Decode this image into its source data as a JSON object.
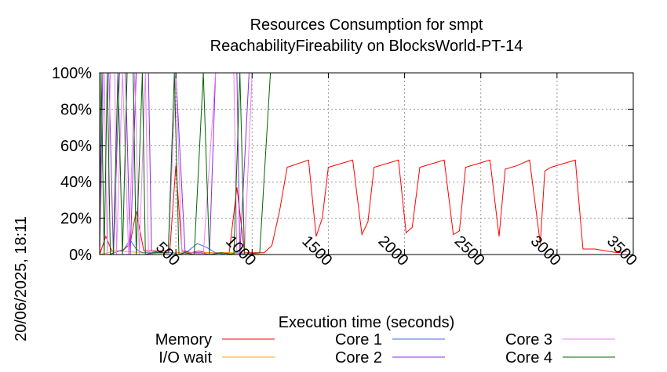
{
  "chart_data": {
    "type": "line",
    "title": "Resources Consumption for smpt",
    "subtitle": "ReachabilityFireability on BlocksWorld-PT-14",
    "xlabel": "Execution time (seconds)",
    "ylabel": "",
    "side_label": "20/06/2025, 18:11",
    "xlim": [
      0,
      3500
    ],
    "ylim": [
      0,
      100
    ],
    "x_ticks": [
      500,
      1000,
      1500,
      2000,
      2500,
      3000,
      3500
    ],
    "y_ticks": [
      0,
      20,
      40,
      60,
      80,
      100
    ],
    "y_tick_suffix": "%",
    "grid": true,
    "legend_position": "bottom",
    "series": [
      {
        "name": "Memory",
        "color": "#ff0000",
        "points": [
          [
            0,
            0
          ],
          [
            40,
            10
          ],
          [
            80,
            2
          ],
          [
            150,
            2
          ],
          [
            200,
            6
          ],
          [
            240,
            24
          ],
          [
            290,
            2
          ],
          [
            340,
            2
          ],
          [
            390,
            2
          ],
          [
            460,
            2
          ],
          [
            500,
            49
          ],
          [
            540,
            2
          ],
          [
            600,
            1
          ],
          [
            650,
            2
          ],
          [
            700,
            1
          ],
          [
            800,
            1
          ],
          [
            850,
            1
          ],
          [
            900,
            37
          ],
          [
            950,
            1
          ],
          [
            1000,
            1
          ],
          [
            1080,
            1
          ],
          [
            1130,
            5
          ],
          [
            1180,
            24
          ],
          [
            1230,
            48
          ],
          [
            1300,
            50
          ],
          [
            1370,
            52
          ],
          [
            1420,
            10
          ],
          [
            1460,
            20
          ],
          [
            1500,
            48
          ],
          [
            1580,
            50
          ],
          [
            1660,
            52
          ],
          [
            1720,
            11
          ],
          [
            1760,
            18
          ],
          [
            1800,
            48
          ],
          [
            1880,
            50
          ],
          [
            1960,
            52
          ],
          [
            2010,
            12
          ],
          [
            2050,
            15
          ],
          [
            2100,
            48
          ],
          [
            2180,
            50
          ],
          [
            2260,
            52
          ],
          [
            2320,
            11
          ],
          [
            2360,
            13
          ],
          [
            2400,
            48
          ],
          [
            2480,
            50
          ],
          [
            2560,
            52
          ],
          [
            2620,
            10
          ],
          [
            2660,
            47
          ],
          [
            2740,
            49
          ],
          [
            2820,
            52
          ],
          [
            2890,
            6
          ],
          [
            2920,
            46
          ],
          [
            2960,
            48
          ],
          [
            3040,
            50
          ],
          [
            3120,
            52
          ],
          [
            3170,
            3
          ],
          [
            3250,
            3
          ],
          [
            3320,
            2
          ],
          [
            3400,
            1
          ],
          [
            3460,
            2
          ]
        ]
      },
      {
        "name": "I/O wait",
        "color": "#ffa500",
        "points": [
          [
            0,
            0
          ],
          [
            100,
            2
          ],
          [
            300,
            1
          ],
          [
            500,
            1
          ],
          [
            700,
            1
          ],
          [
            900,
            1
          ],
          [
            1100,
            0
          ]
        ]
      },
      {
        "name": "Core 1",
        "color": "#4169e1",
        "points": [
          [
            0,
            0
          ],
          [
            60,
            0
          ],
          [
            100,
            1
          ],
          [
            160,
            3
          ],
          [
            200,
            8
          ],
          [
            240,
            3
          ],
          [
            280,
            1
          ],
          [
            350,
            1
          ],
          [
            420,
            1
          ],
          [
            480,
            1
          ],
          [
            520,
            0
          ],
          [
            580,
            2
          ],
          [
            640,
            6
          ],
          [
            700,
            4
          ],
          [
            760,
            1
          ],
          [
            830,
            0
          ],
          [
            900,
            1
          ],
          [
            960,
            0
          ],
          [
            1100,
            0
          ]
        ]
      },
      {
        "name": "Core 2",
        "color": "#8a2be2",
        "points": [
          [
            0,
            0
          ],
          [
            20,
            100
          ],
          [
            60,
            100
          ],
          [
            90,
            0
          ],
          [
            130,
            100
          ],
          [
            170,
            100
          ],
          [
            200,
            0
          ],
          [
            240,
            100
          ],
          [
            320,
            100
          ],
          [
            340,
            2
          ],
          [
            400,
            1
          ],
          [
            450,
            1
          ],
          [
            500,
            100
          ],
          [
            560,
            2
          ],
          [
            600,
            1
          ],
          [
            660,
            1
          ],
          [
            720,
            0
          ],
          [
            760,
            100
          ],
          [
            900,
            100
          ],
          [
            920,
            0
          ],
          [
            980,
            100
          ],
          [
            1150,
            100
          ],
          [
            1500,
            100
          ],
          [
            3500,
            100
          ]
        ]
      },
      {
        "name": "Core 3",
        "color": "#ee82ee",
        "points": [
          [
            0,
            0
          ],
          [
            30,
            100
          ],
          [
            50,
            0
          ],
          [
            70,
            100
          ],
          [
            100,
            100
          ],
          [
            110,
            0
          ],
          [
            150,
            100
          ],
          [
            190,
            0
          ],
          [
            230,
            100
          ],
          [
            260,
            0
          ],
          [
            300,
            100
          ],
          [
            320,
            0
          ],
          [
            380,
            1
          ],
          [
            450,
            1
          ],
          [
            500,
            100
          ],
          [
            540,
            0
          ],
          [
            600,
            1
          ],
          [
            680,
            0
          ],
          [
            760,
            100
          ],
          [
            880,
            100
          ],
          [
            900,
            0
          ],
          [
            950,
            1
          ],
          [
            1000,
            100
          ],
          [
            1150,
            100
          ],
          [
            3500,
            100
          ]
        ]
      },
      {
        "name": "Core 4",
        "color": "#006400",
        "points": [
          [
            0,
            0
          ],
          [
            10,
            100
          ],
          [
            30,
            0
          ],
          [
            50,
            100
          ],
          [
            70,
            0
          ],
          [
            90,
            1
          ],
          [
            120,
            100
          ],
          [
            150,
            0
          ],
          [
            180,
            100
          ],
          [
            220,
            100
          ],
          [
            240,
            0
          ],
          [
            280,
            100
          ],
          [
            300,
            0
          ],
          [
            350,
            1
          ],
          [
            450,
            1
          ],
          [
            490,
            100
          ],
          [
            520,
            0
          ],
          [
            560,
            1
          ],
          [
            620,
            0
          ],
          [
            680,
            100
          ],
          [
            720,
            0
          ],
          [
            800,
            1
          ],
          [
            880,
            0
          ],
          [
            920,
            100
          ],
          [
            950,
            0
          ],
          [
            1050,
            1
          ],
          [
            1120,
            100
          ],
          [
            3500,
            100
          ]
        ]
      }
    ]
  }
}
